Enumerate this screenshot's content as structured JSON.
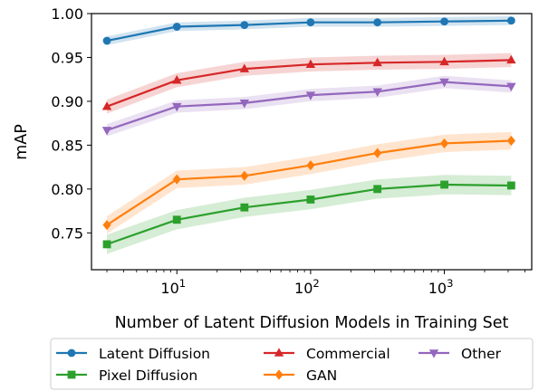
{
  "chart_data": {
    "type": "line",
    "xlabel": "Number of Latent Diffusion Models in Training Set",
    "ylabel": "mAP",
    "xscale": "log",
    "xlim": [
      2.3,
      4500
    ],
    "ylim": [
      0.708,
      1.0
    ],
    "x": [
      3,
      10,
      32,
      100,
      316,
      1000,
      3162
    ],
    "yticks": [
      0.75,
      0.8,
      0.85,
      0.9,
      0.95,
      1.0
    ],
    "ytick_labels": [
      "0.75",
      "0.80",
      "0.85",
      "0.90",
      "0.95",
      "1.00"
    ],
    "xtick_labels": [
      {
        "base": "10",
        "exp": "1",
        "value": 10
      },
      {
        "base": "10",
        "exp": "2",
        "value": 100
      },
      {
        "base": "10",
        "exp": "3",
        "value": 1000
      }
    ],
    "legend_position": "below",
    "grid": false,
    "series": [
      {
        "name": "Latent Diffusion",
        "color": "#1f77b4",
        "marker": "circle",
        "values": [
          0.969,
          0.985,
          0.987,
          0.99,
          0.99,
          0.991,
          0.992
        ],
        "band": 0.005
      },
      {
        "name": "Pixel Diffusion",
        "color": "#2ca02c",
        "marker": "square",
        "values": [
          0.737,
          0.765,
          0.779,
          0.788,
          0.8,
          0.805,
          0.804
        ],
        "band": 0.011
      },
      {
        "name": "Commercial",
        "color": "#d62728",
        "marker": "triangle-up",
        "values": [
          0.894,
          0.924,
          0.937,
          0.942,
          0.944,
          0.945,
          0.947
        ],
        "band": 0.008
      },
      {
        "name": "GAN",
        "color": "#ff7f0e",
        "marker": "diamond",
        "values": [
          0.759,
          0.811,
          0.815,
          0.827,
          0.841,
          0.852,
          0.855
        ],
        "band": 0.01
      },
      {
        "name": "Other",
        "color": "#9467bd",
        "marker": "triangle-down",
        "values": [
          0.867,
          0.894,
          0.898,
          0.907,
          0.911,
          0.922,
          0.917
        ],
        "band": 0.007
      }
    ]
  }
}
